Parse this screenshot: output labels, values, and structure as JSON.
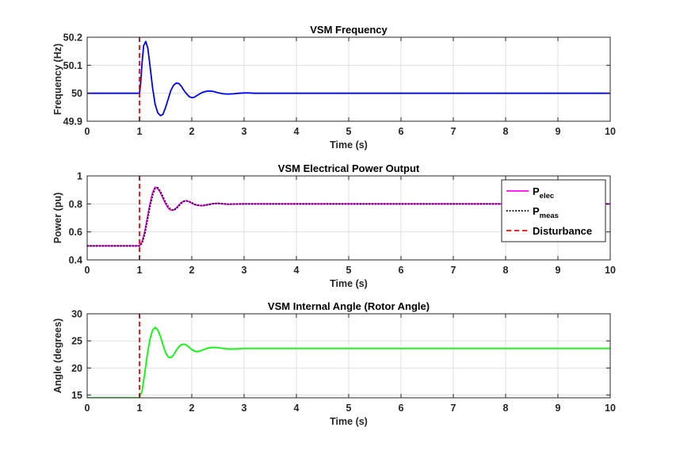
{
  "colors": {
    "frequency": "#0000ff",
    "p_elec": "#ff00ff",
    "p_meas": "#000000",
    "disturbance": "#ff0000",
    "angle": "#00ff00",
    "grid": "#dfdfdf",
    "axes": "#262626"
  },
  "chart_data": [
    {
      "type": "line",
      "title": "VSM Frequency",
      "xlabel": "Time (s)",
      "ylabel": "Frequency (Hz)",
      "xlim": [
        0,
        10
      ],
      "ylim": [
        49.9,
        50.2
      ],
      "xticks": [
        0,
        1,
        2,
        3,
        4,
        5,
        6,
        7,
        8,
        9,
        10
      ],
      "yticks": [
        49.9,
        50,
        50.1,
        50.2
      ],
      "ytick_labels": [
        "49.9",
        "50",
        "50.1",
        "50.2"
      ],
      "grid": true,
      "disturbance_time": 1,
      "series": [
        {
          "style": "solid",
          "color": "#0000ff",
          "x": [
            0,
            1,
            1.02,
            1.05,
            1.08,
            1.12,
            1.16,
            1.2,
            1.25,
            1.3,
            1.35,
            1.4,
            1.45,
            1.5,
            1.55,
            1.6,
            1.65,
            1.7,
            1.75,
            1.8,
            1.85,
            1.9,
            1.95,
            2.0,
            2.05,
            2.1,
            2.2,
            2.3,
            2.4,
            2.5,
            2.6,
            2.7,
            2.8,
            2.9,
            3.0,
            3.1,
            3.2,
            3.4,
            3.6,
            4,
            10
          ],
          "y": [
            50,
            50,
            50.03,
            50.11,
            50.17,
            50.185,
            50.16,
            50.1,
            50.02,
            49.96,
            49.93,
            49.92,
            49.925,
            49.95,
            49.98,
            50.01,
            50.028,
            50.036,
            50.035,
            50.025,
            50.01,
            49.998,
            49.988,
            49.984,
            49.986,
            49.992,
            50.003,
            50.008,
            50.007,
            50.002,
            49.998,
            49.997,
            49.998,
            50.0,
            50.001,
            50.001,
            50.0,
            50.0,
            50.0,
            50.0,
            50.0
          ]
        }
      ],
      "vlines": [
        {
          "x": 1,
          "style": "dashed",
          "color": "#ff0000"
        }
      ]
    },
    {
      "type": "line",
      "title": "VSM Electrical Power Output",
      "xlabel": "Time (s)",
      "ylabel": "Power (pu)",
      "xlim": [
        0,
        10
      ],
      "ylim": [
        0.4,
        1
      ],
      "xticks": [
        0,
        1,
        2,
        3,
        4,
        5,
        6,
        7,
        8,
        9,
        10
      ],
      "yticks": [
        0.4,
        0.6,
        0.8,
        1
      ],
      "ytick_labels": [
        "0.4",
        "0.6",
        "0.8",
        "1"
      ],
      "grid": true,
      "disturbance_time": 1,
      "legend_placement": "top-right",
      "legend": [
        {
          "main": "P",
          "sub": "elec",
          "style": "solid",
          "color": "#ff00ff"
        },
        {
          "main": "P",
          "sub": "meas",
          "style": "dotted",
          "color": "#000000"
        },
        {
          "main": "Disturbance",
          "sub": "",
          "style": "dashed",
          "color": "#ff0000"
        }
      ],
      "series": [
        {
          "name": "Pelec",
          "style": "solid",
          "color": "#ff00ff",
          "x": [
            0,
            1,
            1.05,
            1.1,
            1.15,
            1.2,
            1.25,
            1.3,
            1.35,
            1.4,
            1.45,
            1.5,
            1.55,
            1.6,
            1.65,
            1.7,
            1.75,
            1.8,
            1.85,
            1.9,
            1.95,
            2.0,
            2.05,
            2.1,
            2.2,
            2.3,
            2.4,
            2.5,
            2.6,
            2.7,
            2.8,
            3.0,
            3.5,
            10
          ],
          "y": [
            0.5,
            0.5,
            0.53,
            0.6,
            0.7,
            0.8,
            0.88,
            0.92,
            0.91,
            0.88,
            0.84,
            0.8,
            0.77,
            0.755,
            0.755,
            0.77,
            0.79,
            0.81,
            0.82,
            0.822,
            0.815,
            0.805,
            0.796,
            0.79,
            0.787,
            0.795,
            0.802,
            0.804,
            0.8,
            0.798,
            0.799,
            0.8,
            0.8,
            0.8
          ]
        },
        {
          "name": "Pmeas",
          "style": "dotted",
          "color": "#000000",
          "x": [
            0,
            1,
            1.05,
            1.1,
            1.15,
            1.2,
            1.25,
            1.3,
            1.35,
            1.4,
            1.45,
            1.5,
            1.55,
            1.6,
            1.65,
            1.7,
            1.75,
            1.8,
            1.85,
            1.9,
            1.95,
            2.0,
            2.05,
            2.1,
            2.2,
            2.3,
            2.4,
            2.5,
            2.6,
            2.7,
            2.8,
            3.0,
            3.5,
            10
          ],
          "y": [
            0.5,
            0.5,
            0.52,
            0.58,
            0.68,
            0.78,
            0.86,
            0.91,
            0.915,
            0.89,
            0.85,
            0.81,
            0.78,
            0.76,
            0.755,
            0.765,
            0.785,
            0.805,
            0.818,
            0.822,
            0.818,
            0.808,
            0.798,
            0.792,
            0.787,
            0.793,
            0.801,
            0.804,
            0.801,
            0.798,
            0.799,
            0.8,
            0.8,
            0.8
          ]
        }
      ],
      "vlines": [
        {
          "x": 1,
          "style": "dashed",
          "color": "#ff0000"
        }
      ]
    },
    {
      "type": "line",
      "title": "VSM Internal Angle (Rotor Angle)",
      "xlabel": "Time (s)",
      "ylabel": "Angle (degrees)",
      "xlim": [
        0,
        10
      ],
      "ylim": [
        14.5,
        30
      ],
      "xticks": [
        0,
        1,
        2,
        3,
        4,
        5,
        6,
        7,
        8,
        9,
        10
      ],
      "yticks": [
        15,
        20,
        25,
        30
      ],
      "ytick_labels": [
        "15",
        "20",
        "25",
        "30"
      ],
      "grid": true,
      "disturbance_time": 1,
      "series": [
        {
          "style": "solid",
          "color": "#00ff00",
          "x": [
            0,
            1,
            1.05,
            1.1,
            1.15,
            1.2,
            1.25,
            1.3,
            1.35,
            1.4,
            1.45,
            1.5,
            1.55,
            1.6,
            1.65,
            1.7,
            1.75,
            1.8,
            1.85,
            1.9,
            1.95,
            2.0,
            2.05,
            2.1,
            2.15,
            2.2,
            2.3,
            2.4,
            2.5,
            2.6,
            2.7,
            2.8,
            2.9,
            3.0,
            3.2,
            3.5,
            10
          ],
          "y": [
            14.5,
            14.5,
            15.8,
            19.0,
            22.5,
            25.3,
            27.0,
            27.5,
            27.0,
            25.8,
            24.2,
            22.8,
            22.0,
            21.9,
            22.4,
            23.2,
            23.9,
            24.3,
            24.4,
            24.2,
            23.8,
            23.4,
            23.1,
            23.0,
            23.1,
            23.3,
            23.65,
            23.8,
            23.75,
            23.6,
            23.5,
            23.5,
            23.55,
            23.6,
            23.6,
            23.6,
            23.6
          ]
        }
      ],
      "vlines": [
        {
          "x": 1,
          "style": "dashed",
          "color": "#ff0000"
        }
      ]
    }
  ]
}
